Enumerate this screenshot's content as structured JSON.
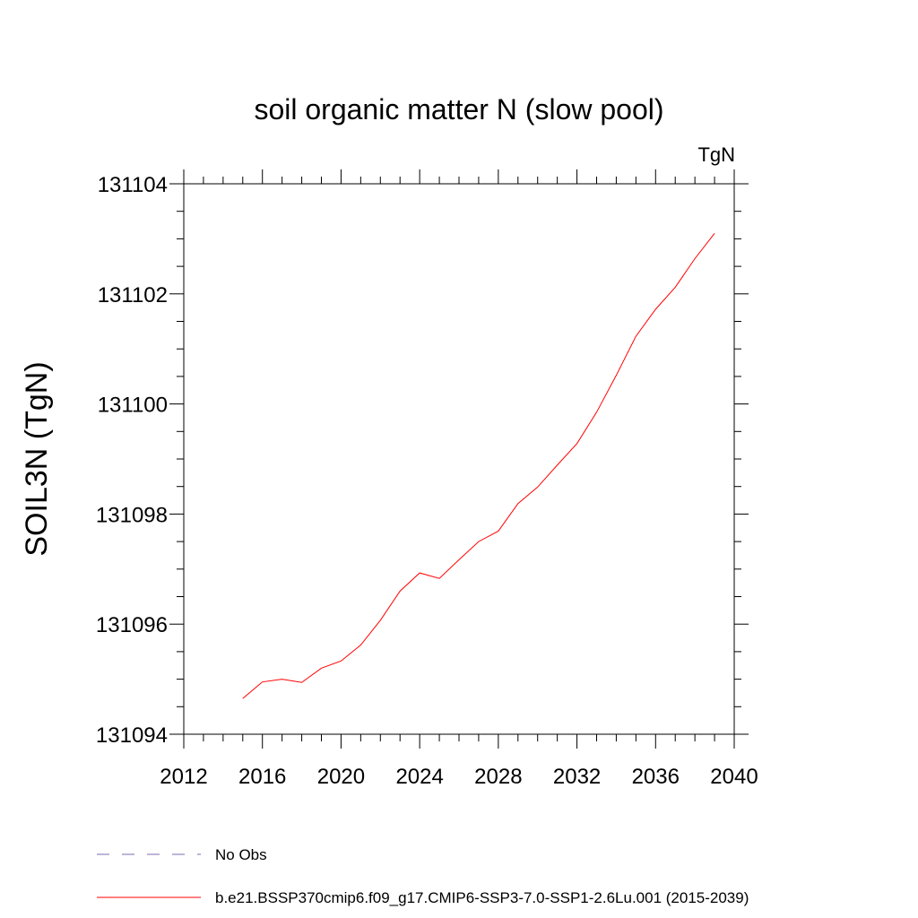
{
  "chart_data": {
    "type": "line",
    "title": "soil organic matter N (slow pool)",
    "units_label": "TgN",
    "ylabel": "SOIL3N  (TgN)",
    "xlabel": "",
    "xlim": [
      2012,
      2040
    ],
    "ylim": [
      131094,
      131104
    ],
    "x_ticks": [
      2012,
      2016,
      2020,
      2024,
      2028,
      2032,
      2036,
      2040
    ],
    "y_ticks": [
      131094,
      131096,
      131098,
      131100,
      131102,
      131104
    ],
    "grid": false,
    "legend_placement": "bottom",
    "legend": [
      {
        "name": "No Obs",
        "color": "#7b68b0",
        "style": "dashed"
      },
      {
        "name": "b.e21.BSSP370cmip6.f09_g17.CMIP6-SSP3-7.0-SSP1-2.6Lu.001 (2015-2039)",
        "color": "#ff0000",
        "style": "solid"
      }
    ],
    "series": [
      {
        "name": "b.e21.BSSP370cmip6.f09_g17.CMIP6-SSP3-7.0-SSP1-2.6Lu.001 (2015-2039)",
        "color": "#ff0000",
        "x": [
          2015,
          2016,
          2017,
          2018,
          2019,
          2020,
          2021,
          2022,
          2023,
          2024,
          2025,
          2026,
          2027,
          2028,
          2029,
          2030,
          2031,
          2032,
          2033,
          2034,
          2035,
          2036,
          2037,
          2038,
          2039
        ],
        "y": [
          131094.65,
          131094.95,
          131095.0,
          131094.94,
          131095.2,
          131095.33,
          131095.62,
          131096.07,
          131096.6,
          131096.93,
          131096.83,
          131097.17,
          131097.5,
          131097.69,
          131098.19,
          131098.49,
          131098.89,
          131099.28,
          131099.85,
          131100.52,
          131101.23,
          131101.72,
          131102.12,
          131102.64,
          131103.1
        ]
      }
    ]
  }
}
